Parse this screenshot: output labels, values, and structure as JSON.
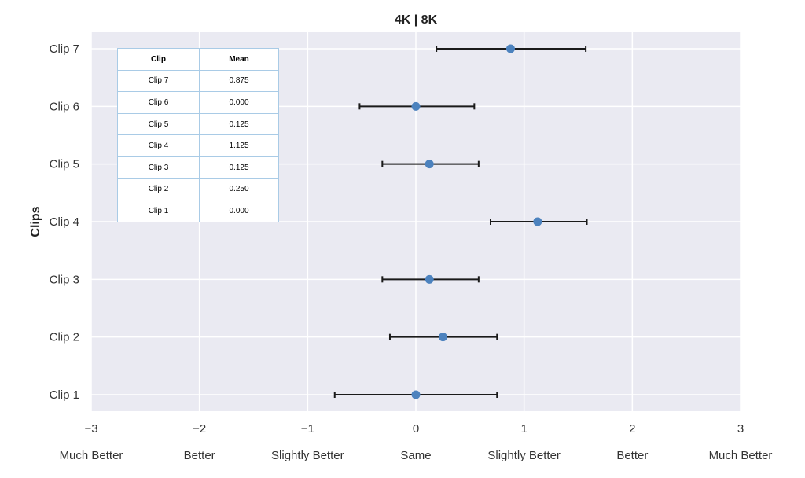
{
  "chart_data": {
    "type": "scatter",
    "title": "4K | 8K",
    "xlabel": "",
    "ylabel": "Clips",
    "xlim": [
      -3,
      3
    ],
    "xticks": [
      -3,
      -2,
      -1,
      0,
      1,
      2,
      3
    ],
    "xtick_descriptions": [
      "Much Better",
      "Better",
      "Slightly Better",
      "Same",
      "Slightly Better",
      "Better",
      "Much Better"
    ],
    "categories": [
      "Clip 1",
      "Clip 2",
      "Clip 3",
      "Clip 4",
      "Clip 5",
      "Clip 6",
      "Clip 7"
    ],
    "points": [
      {
        "clip": "Clip 1",
        "mean": 0.0,
        "lower": -0.75,
        "upper": 0.75
      },
      {
        "clip": "Clip 2",
        "mean": 0.25,
        "lower": -0.24,
        "upper": 0.75
      },
      {
        "clip": "Clip 3",
        "mean": 0.125,
        "lower": -0.31,
        "upper": 0.58
      },
      {
        "clip": "Clip 4",
        "mean": 1.125,
        "lower": 0.69,
        "upper": 1.58
      },
      {
        "clip": "Clip 5",
        "mean": 0.125,
        "lower": -0.31,
        "upper": 0.58
      },
      {
        "clip": "Clip 6",
        "mean": 0.0,
        "lower": -0.52,
        "upper": 0.54
      },
      {
        "clip": "Clip 7",
        "mean": 0.875,
        "lower": 0.19,
        "upper": 1.57
      }
    ],
    "grid": true,
    "colors": {
      "background": "#eaeaf2",
      "grid": "#ffffff",
      "marker": "#4c82be",
      "errorbar": "#1a1a1a"
    }
  },
  "inset_table": {
    "headers": [
      "Clip",
      "Mean"
    ],
    "rows": [
      [
        "Clip 7",
        "0.875"
      ],
      [
        "Clip 6",
        "0.000"
      ],
      [
        "Clip 5",
        "0.125"
      ],
      [
        "Clip 4",
        "1.125"
      ],
      [
        "Clip 3",
        "0.125"
      ],
      [
        "Clip 2",
        "0.250"
      ],
      [
        "Clip 1",
        "0.000"
      ]
    ]
  }
}
